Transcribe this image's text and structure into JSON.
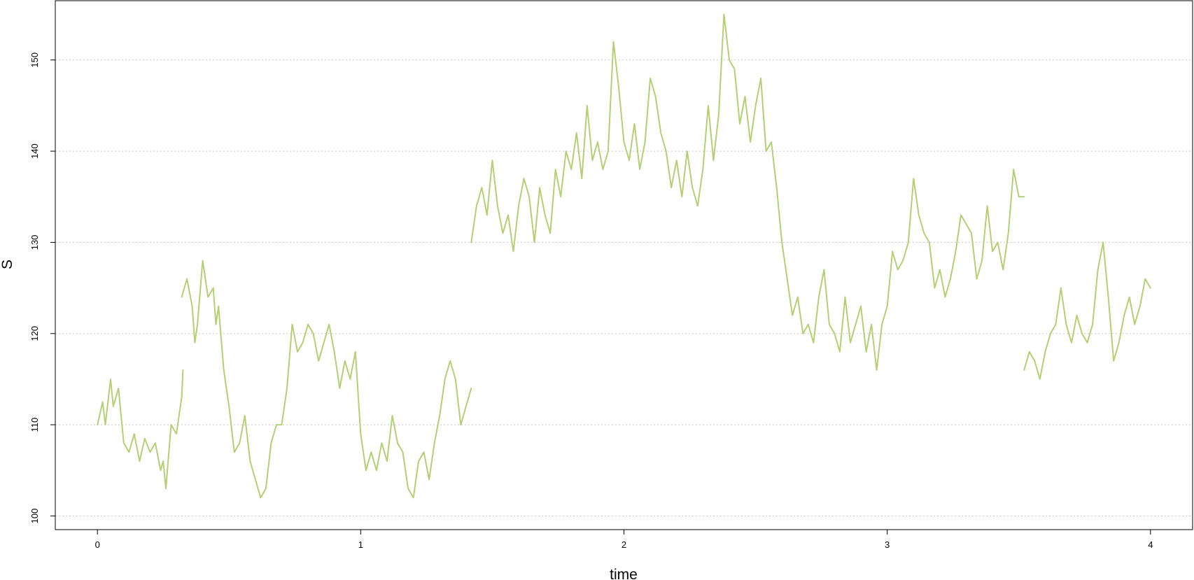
{
  "chart_data": {
    "type": "line",
    "title": "",
    "xlabel": "time",
    "ylabel": "S",
    "xlim": [
      -0.16,
      4.16
    ],
    "ylim": [
      98.5,
      156.5
    ],
    "x_ticks": [
      0,
      1,
      2,
      3,
      4
    ],
    "y_ticks": [
      100,
      110,
      120,
      130,
      140,
      150
    ],
    "grid": {
      "horizontal": true,
      "vertical": false,
      "style": "dotted"
    },
    "line_color": "#b5cf74",
    "series": [
      {
        "x": [
          0.0,
          0.02,
          0.03,
          0.05,
          0.06,
          0.08,
          0.09,
          0.1,
          0.12,
          0.14,
          0.16,
          0.18,
          0.2,
          0.22,
          0.24,
          0.25,
          0.26,
          0.28,
          0.3,
          0.32,
          0.325
        ],
        "y": [
          110,
          112.5,
          110,
          115,
          112,
          114,
          111,
          108,
          107,
          109,
          106,
          108.5,
          107,
          108,
          105,
          106,
          103,
          110,
          109,
          113,
          116
        ]
      },
      {
        "x": [
          0.32,
          0.34,
          0.36,
          0.37,
          0.38,
          0.4,
          0.42,
          0.44,
          0.45,
          0.46,
          0.48,
          0.5,
          0.52,
          0.54,
          0.56,
          0.58,
          0.6,
          0.62,
          0.64,
          0.66,
          0.68,
          0.7,
          0.72,
          0.74,
          0.76,
          0.78,
          0.8,
          0.82,
          0.84,
          0.86,
          0.88,
          0.9,
          0.92,
          0.94,
          0.96,
          0.98,
          1.0,
          1.02,
          1.04,
          1.06,
          1.08,
          1.1,
          1.12,
          1.14,
          1.16,
          1.18,
          1.2,
          1.22,
          1.24,
          1.26,
          1.28,
          1.3,
          1.32,
          1.34,
          1.36,
          1.38,
          1.4,
          1.42
        ],
        "y": [
          124,
          126,
          123,
          119,
          121,
          128,
          124,
          125,
          121,
          123,
          116,
          112,
          107,
          108,
          111,
          106,
          104,
          102,
          103,
          108,
          110,
          110,
          114,
          121,
          118,
          119,
          121,
          120,
          117,
          119,
          121,
          118,
          114,
          117,
          115,
          118,
          109,
          105,
          107,
          105,
          108,
          106,
          111,
          108,
          107,
          103,
          102,
          106,
          107,
          104,
          108,
          111,
          115,
          117,
          115,
          110,
          112,
          114
        ]
      },
      {
        "x": [
          1.42,
          1.44,
          1.46,
          1.48,
          1.5,
          1.52,
          1.54,
          1.56,
          1.58,
          1.6,
          1.62,
          1.64,
          1.66,
          1.68,
          1.7,
          1.72,
          1.74,
          1.76,
          1.78,
          1.8,
          1.82,
          1.84,
          1.86,
          1.88,
          1.9,
          1.92,
          1.94,
          1.96,
          1.98,
          2.0,
          2.02,
          2.04,
          2.06,
          2.08,
          2.1,
          2.12,
          2.14,
          2.16,
          2.18,
          2.2,
          2.22,
          2.24,
          2.26,
          2.28,
          2.3,
          2.32,
          2.34,
          2.36,
          2.38,
          2.4,
          2.42,
          2.44,
          2.46,
          2.48,
          2.5,
          2.52,
          2.54,
          2.56,
          2.58,
          2.6,
          2.62,
          2.64,
          2.66,
          2.68,
          2.7,
          2.72,
          2.74,
          2.76,
          2.78,
          2.8,
          2.82,
          2.84,
          2.86,
          2.88,
          2.9,
          2.92,
          2.94,
          2.96,
          2.98,
          3.0,
          3.02,
          3.04,
          3.06,
          3.08,
          3.1,
          3.12,
          3.14,
          3.16,
          3.18,
          3.2,
          3.22,
          3.24,
          3.26,
          3.28,
          3.3,
          3.32,
          3.34,
          3.36,
          3.38,
          3.4,
          3.42,
          3.44,
          3.46,
          3.48,
          3.5,
          3.52
        ],
        "y": [
          130,
          134,
          136,
          133,
          139,
          134,
          131,
          133,
          129,
          134,
          137,
          135,
          130,
          136,
          133,
          131,
          138,
          135,
          140,
          138,
          142,
          137,
          145,
          139,
          141,
          138,
          140,
          152,
          147,
          141,
          139,
          143,
          138,
          141,
          148,
          146,
          142,
          140,
          136,
          139,
          135,
          140,
          136,
          134,
          138,
          145,
          139,
          144,
          155,
          150,
          149,
          143,
          146,
          141,
          145,
          148,
          140,
          141,
          136,
          130,
          126,
          122,
          124,
          120,
          121,
          119,
          124,
          127,
          121,
          120,
          118,
          124,
          119,
          121,
          123,
          118,
          121,
          116,
          121,
          123,
          129,
          127,
          128,
          130,
          137,
          133,
          131,
          130,
          125,
          127,
          124,
          126,
          129,
          133,
          132,
          131,
          126,
          128,
          134,
          129,
          130,
          127,
          131,
          138,
          135,
          135
        ]
      },
      {
        "x": [
          3.52,
          3.54,
          3.56,
          3.58,
          3.6,
          3.62,
          3.64,
          3.66,
          3.68,
          3.7,
          3.72,
          3.74,
          3.76,
          3.78,
          3.8,
          3.82,
          3.84,
          3.86,
          3.88,
          3.9,
          3.92,
          3.94,
          3.96,
          3.98,
          4.0
        ],
        "y": [
          116,
          118,
          117,
          115,
          118,
          120,
          121,
          125,
          121,
          119,
          122,
          120,
          119,
          121,
          127,
          130,
          124,
          117,
          119,
          122,
          124,
          121,
          123,
          126,
          125
        ]
      }
    ]
  }
}
